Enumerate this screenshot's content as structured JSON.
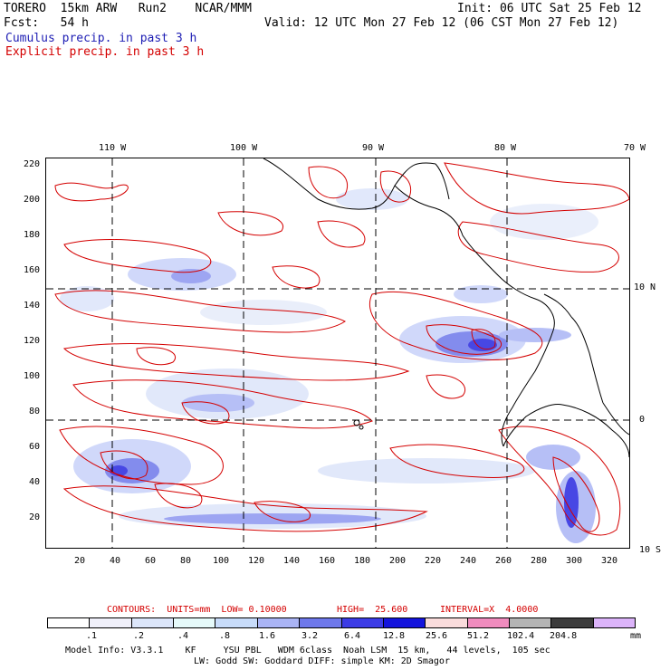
{
  "header": {
    "model": "TORERO  15km ARW   Run2    NCAR/MMM",
    "init": "Init: 06 UTC Sat 25 Feb 12",
    "fcst": "Fcst:   54 h",
    "valid": "Valid: 12 UTC Mon 27 Feb 12 (06 CST Mon 27 Feb 12)",
    "cumulus": "Cumulus precip. in past 3 h",
    "explicit": "Explicit precip. in past 3 h"
  },
  "top_lon_labels": [
    "110 W",
    "100 W",
    "90 W",
    "80 W",
    "70 W"
  ],
  "right_lat_labels": [
    "10 N",
    "0",
    "10 S"
  ],
  "left_grid_labels": [
    "220",
    "200",
    "180",
    "160",
    "140",
    "120",
    "100",
    "80",
    "60",
    "40",
    "20"
  ],
  "bottom_grid_labels": [
    "20",
    "40",
    "60",
    "80",
    "100",
    "120",
    "140",
    "160",
    "180",
    "200",
    "220",
    "240",
    "260",
    "280",
    "300",
    "320"
  ],
  "contour_info": {
    "units": "CONTOURS:  UNITS=mm  LOW= 0.10000",
    "high": "HIGH=  25.600",
    "interval": "INTERVAL=X  4.0000"
  },
  "colorbar": {
    "labels": [
      ".1",
      ".2",
      ".4",
      ".8",
      "1.6",
      "3.2",
      "6.4",
      "12.8",
      "25.6",
      "51.2",
      "102.4",
      "204.8"
    ],
    "unit": "mm",
    "colors": [
      "#ffffff",
      "#f0f0fa",
      "#dce6fa",
      "#e6fafa",
      "#c8dcfa",
      "#aab4f5",
      "#6e78eb",
      "#3c3ce6",
      "#1414dc",
      "#fadcdc",
      "#f08cbe",
      "#b4b4b4",
      "#3c3c3c",
      "#dcb4fa"
    ]
  },
  "footer": {
    "line1": "Model Info: V3.3.1    KF     YSU PBL   WDM 6class  Noah LSM  15 km,   44 levels,  105 sec",
    "line2": "LW: Godd SW: Goddard DIFF: simple KM: 2D Smagor"
  },
  "colors": {
    "cumulus": "#1e1eb4",
    "explicit": "#d40000"
  }
}
